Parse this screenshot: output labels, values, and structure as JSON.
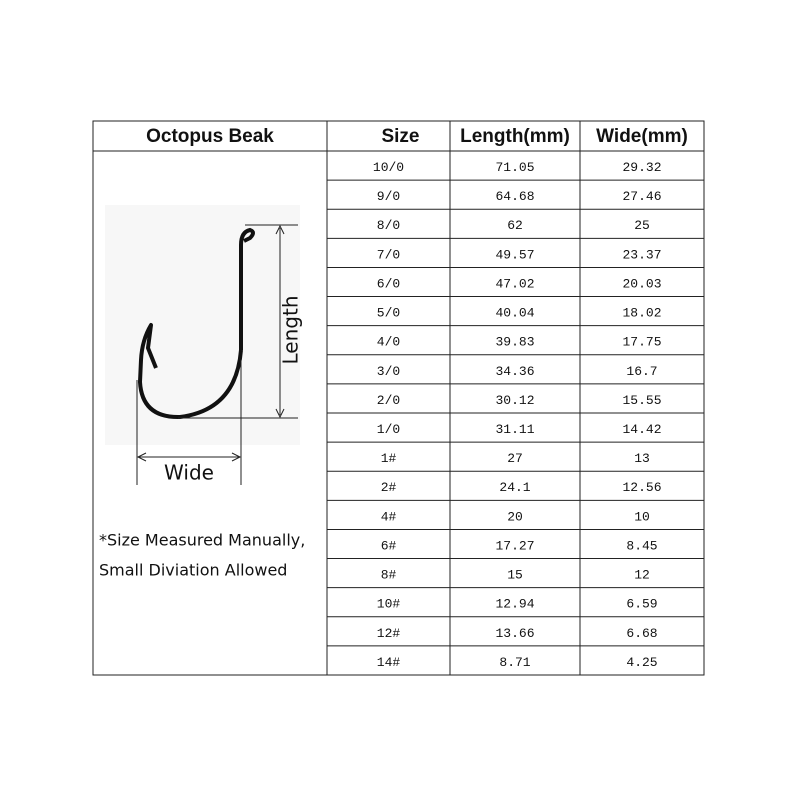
{
  "header": [
    "Octopus Beak",
    "Size",
    "Length(mm)",
    "Wide(mm)"
  ],
  "figure": {
    "length_label": "Length",
    "wide_label": "Wide"
  },
  "note": [
    "*Size Measured Manually,",
    "Small Diviation Allowed"
  ],
  "table": {
    "rows": [
      [
        "10/0",
        "71.05",
        "29.32"
      ],
      [
        "9/0",
        "64.68",
        "27.46"
      ],
      [
        "8/0",
        "62",
        "25"
      ],
      [
        "7/0",
        "49.57",
        "23.37"
      ],
      [
        "6/0",
        "47.02",
        "20.03"
      ],
      [
        "5/0",
        "40.04",
        "18.02"
      ],
      [
        "4/0",
        "39.83",
        "17.75"
      ],
      [
        "3/0",
        "34.36",
        "16.7"
      ],
      [
        "2/0",
        "30.12",
        "15.55"
      ],
      [
        "1/0",
        "31.11",
        "14.42"
      ],
      [
        "1#",
        "27",
        "13"
      ],
      [
        "2#",
        "24.1",
        "12.56"
      ],
      [
        "4#",
        "20",
        "10"
      ],
      [
        "6#",
        "17.27",
        "8.45"
      ],
      [
        "8#",
        "15",
        "12"
      ],
      [
        "10#",
        "12.94",
        "6.59"
      ],
      [
        "12#",
        "13.66",
        "6.68"
      ],
      [
        "14#",
        "8.71",
        "4.25"
      ]
    ]
  }
}
